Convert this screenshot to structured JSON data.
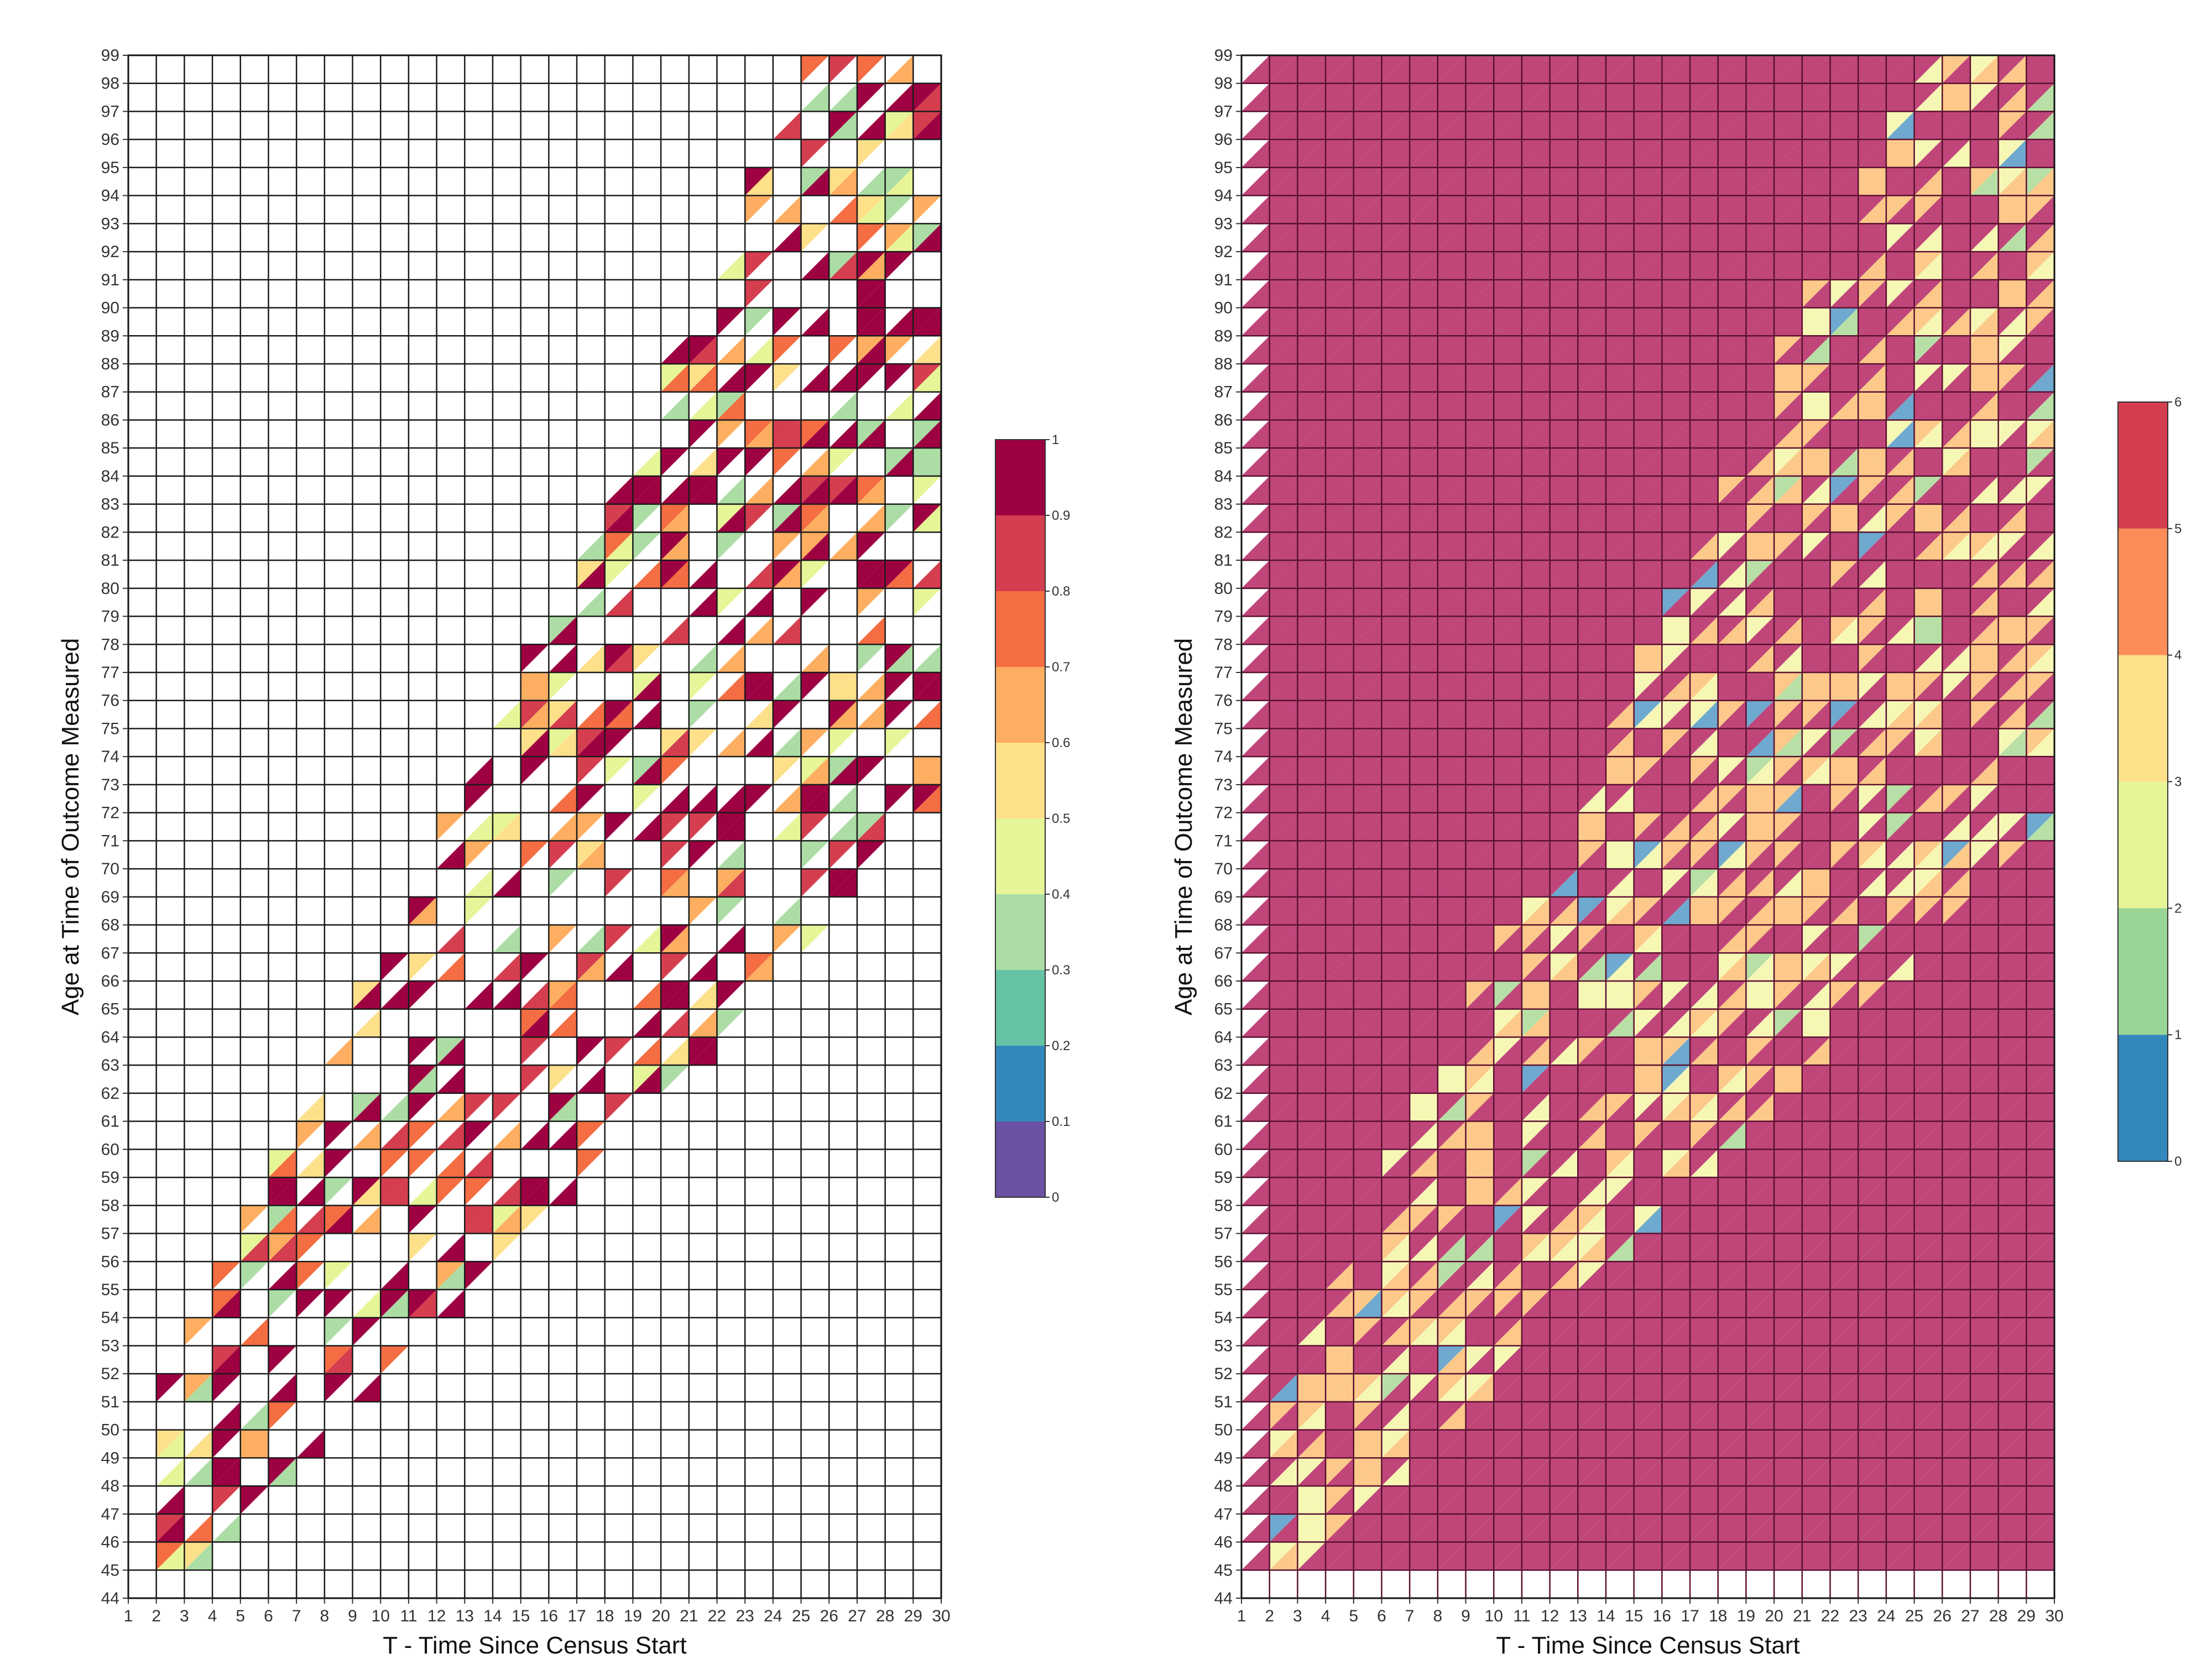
{
  "chart_data": [
    {
      "type": "heatmap",
      "xlabel": "T - Time Since Census Start",
      "ylabel": "Age at Time of Outcome Measured",
      "x_ticks": [
        "1",
        "2",
        "3",
        "4",
        "5",
        "6",
        "7",
        "8",
        "9",
        "10",
        "11",
        "12",
        "13",
        "14",
        "15",
        "16",
        "17",
        "18",
        "19",
        "20",
        "21",
        "22",
        "23",
        "24",
        "25",
        "26",
        "27",
        "28",
        "29",
        "30"
      ],
      "y_ticks": [
        "44",
        "45",
        "46",
        "47",
        "48",
        "49",
        "50",
        "51",
        "52",
        "53",
        "54",
        "55",
        "56",
        "57",
        "58",
        "59",
        "60",
        "61",
        "62",
        "63",
        "64",
        "65",
        "66",
        "67",
        "68",
        "69",
        "70",
        "71",
        "72",
        "73",
        "74",
        "75",
        "76",
        "77",
        "78",
        "79",
        "80",
        "81",
        "82",
        "83",
        "84",
        "85",
        "86",
        "87",
        "88",
        "89",
        "90",
        "91",
        "92",
        "93",
        "94",
        "95",
        "96",
        "97",
        "98",
        "99"
      ],
      "xlim": [
        1,
        30
      ],
      "ylim": [
        44,
        99
      ],
      "grid": true,
      "cells": "half-cell triangles (upper-left / lower-right per grid cell); sparse diagonal band from (T=2, age=45) to (T=28, age=99); white = no data",
      "colorbar": {
        "ticks": [
          "0",
          "0.1",
          "0.2",
          "0.3",
          "0.4",
          "0.5",
          "0.6",
          "0.7",
          "0.8",
          "0.9",
          "1"
        ],
        "colors": [
          "#6a51a3",
          "#3288bd",
          "#66c2a5",
          "#abdda4",
          "#e6f598",
          "#fee08b",
          "#fdae61",
          "#f46d43",
          "#d53e4f",
          "#9e0142"
        ]
      }
    },
    {
      "type": "heatmap",
      "xlabel": "T - Time Since Census Start",
      "ylabel": "Age at Time of Outcome Measured",
      "x_ticks": [
        "1",
        "2",
        "3",
        "4",
        "5",
        "6",
        "7",
        "8",
        "9",
        "10",
        "11",
        "12",
        "13",
        "14",
        "15",
        "16",
        "17",
        "18",
        "19",
        "20",
        "21",
        "22",
        "23",
        "24",
        "25",
        "26",
        "27",
        "28",
        "29",
        "30"
      ],
      "y_ticks": [
        "44",
        "45",
        "46",
        "47",
        "48",
        "49",
        "50",
        "51",
        "52",
        "53",
        "54",
        "55",
        "56",
        "57",
        "58",
        "59",
        "60",
        "61",
        "62",
        "63",
        "64",
        "65",
        "66",
        "67",
        "68",
        "69",
        "70",
        "71",
        "72",
        "73",
        "74",
        "75",
        "76",
        "77",
        "78",
        "79",
        "80",
        "81",
        "82",
        "83",
        "84",
        "85",
        "86",
        "87",
        "88",
        "89",
        "90",
        "91",
        "92",
        "93",
        "94",
        "95",
        "96",
        "97",
        "98",
        "99"
      ],
      "xlim": [
        1,
        30
      ],
      "ylim": [
        44,
        99
      ],
      "grid": true,
      "cells": "half-cell triangles; background filled with value 5-6 (crimson) for T 2-30, ages 45-99; mixed 1-5 values along the same diagonal band",
      "colorbar": {
        "ticks": [
          "0",
          "1",
          "2",
          "3",
          "4",
          "5",
          "6"
        ],
        "colors": [
          "#3288bd",
          "#99d594",
          "#e6f598",
          "#fee08b",
          "#fc8d59",
          "#d53e4f"
        ]
      }
    }
  ]
}
